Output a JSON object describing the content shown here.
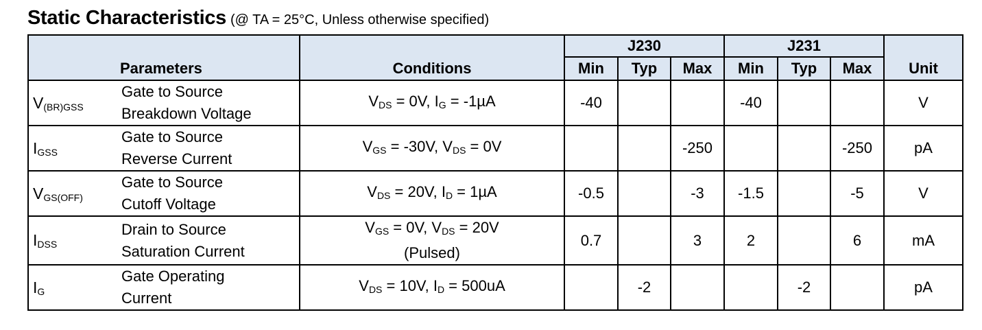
{
  "title": {
    "main": "Static Characteristics",
    "condition": "(@ TA = 25°C, Unless otherwise specified)"
  },
  "headers": {
    "parameters": "Parameters",
    "conditions": "Conditions",
    "part1": "J230",
    "part2": "J231",
    "min": "Min",
    "typ": "Typ",
    "max": "Max",
    "unit": "Unit"
  },
  "rows": [
    {
      "symbol_main": "V",
      "symbol_sub": "(BR)GSS",
      "name_line1": "Gate to Source",
      "name_line2": "Breakdown Voltage",
      "cond_line1": [
        {
          "t": "V"
        },
        {
          "s": "DS"
        },
        {
          "t": " = 0V, I"
        },
        {
          "s": "G"
        },
        {
          "t": " = -1µA"
        }
      ],
      "cond_line2": [],
      "j230_min": "-40",
      "j230_typ": "",
      "j230_max": "",
      "j231_min": "-40",
      "j231_typ": "",
      "j231_max": "",
      "unit": "V"
    },
    {
      "symbol_main": "I",
      "symbol_sub": "GSS",
      "name_line1": "Gate to Source",
      "name_line2": "Reverse Current",
      "cond_line1": [
        {
          "t": "V"
        },
        {
          "s": "GS"
        },
        {
          "t": " = -30V, V"
        },
        {
          "s": "DS"
        },
        {
          "t": " = 0V"
        }
      ],
      "cond_line2": [],
      "j230_min": "",
      "j230_typ": "",
      "j230_max": "-250",
      "j231_min": "",
      "j231_typ": "",
      "j231_max": "-250",
      "unit": "pA"
    },
    {
      "symbol_main": "V",
      "symbol_sub": "GS(OFF)",
      "name_line1": "Gate to Source",
      "name_line2": "Cutoff Voltage",
      "cond_line1": [
        {
          "t": "V"
        },
        {
          "s": "DS"
        },
        {
          "t": " = 20V, I"
        },
        {
          "s": "D"
        },
        {
          "t": " = 1µA"
        }
      ],
      "cond_line2": [],
      "j230_min": "-0.5",
      "j230_typ": "",
      "j230_max": "-3",
      "j231_min": "-1.5",
      "j231_typ": "",
      "j231_max": "-5",
      "unit": "V"
    },
    {
      "symbol_main": "I",
      "symbol_sub": "DSS",
      "name_line1": "Drain to Source",
      "name_line2": "Saturation Current",
      "cond_line1": [
        {
          "t": "V"
        },
        {
          "s": "GS"
        },
        {
          "t": " = 0V, V"
        },
        {
          "s": "DS"
        },
        {
          "t": " = 20V"
        }
      ],
      "cond_line2": [
        {
          "t": "(Pulsed)"
        }
      ],
      "j230_min": "0.7",
      "j230_typ": "",
      "j230_max": "3",
      "j231_min": "2",
      "j231_typ": "",
      "j231_max": "6",
      "unit": "mA"
    },
    {
      "symbol_main": "I",
      "symbol_sub": "G",
      "name_line1": "Gate Operating",
      "name_line2": "Current",
      "cond_line1": [
        {
          "t": "V"
        },
        {
          "s": "DS"
        },
        {
          "t": " = 10V, I"
        },
        {
          "s": "D"
        },
        {
          "t": " = 500uA"
        }
      ],
      "cond_line2": [],
      "j230_min": "",
      "j230_typ": "-2",
      "j230_max": "",
      "j231_min": "",
      "j231_typ": "-2",
      "j231_max": "",
      "unit": "pA"
    }
  ]
}
